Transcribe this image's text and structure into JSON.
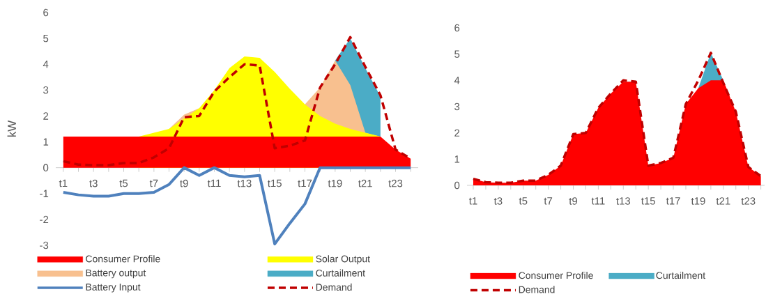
{
  "chart_data": [
    {
      "type": "area",
      "ylabel": "kW",
      "ylim": [
        -3,
        6
      ],
      "yticks": [
        -3,
        -2,
        -1,
        0,
        1,
        2,
        3,
        4,
        5,
        6
      ],
      "legend": "bottom",
      "categories": [
        "t1",
        null,
        "t3",
        null,
        "t5",
        null,
        "t7",
        null,
        "t9",
        null,
        "t11",
        null,
        "t13",
        null,
        "t15",
        null,
        "t17",
        null,
        "t19",
        null,
        "t21",
        null,
        "t23",
        null
      ],
      "series": [
        {
          "name": "Consumer Profile",
          "color": "#ff0000",
          "values": [
            1.2,
            1.2,
            1.2,
            1.2,
            1.2,
            1.2,
            1.2,
            1.2,
            1.2,
            1.2,
            1.2,
            1.2,
            1.2,
            1.2,
            1.2,
            1.2,
            1.2,
            1.2,
            1.2,
            1.2,
            1.2,
            1.2,
            0.7,
            0.35
          ]
        },
        {
          "name": "Solar Output",
          "color": "#ffff00",
          "values": [
            null,
            null,
            null,
            null,
            null,
            1.2,
            1.35,
            1.5,
            1.9,
            2.3,
            3.0,
            3.85,
            4.3,
            4.25,
            3.7,
            3.05,
            2.45,
            2.0,
            1.7,
            1.5,
            1.35,
            1.2,
            null,
            null
          ]
        },
        {
          "name": "Battery output",
          "color": "#f8c08f",
          "values": [
            null,
            null,
            null,
            null,
            null,
            null,
            null,
            1.5,
            2.05,
            2.3,
            null,
            null,
            null,
            null,
            null,
            null,
            2.45,
            3.1,
            4.15,
            3.2,
            1.35,
            1.2,
            null,
            null
          ]
        },
        {
          "name": "Curtailment",
          "color": "#4bacc6",
          "values": [
            null,
            null,
            null,
            null,
            null,
            null,
            null,
            null,
            null,
            null,
            null,
            null,
            null,
            null,
            null,
            null,
            null,
            null,
            4.15,
            5.0,
            3.85,
            2.75,
            null,
            null
          ]
        },
        {
          "name": "Battery Input",
          "type": "line",
          "color": "#4f81bd",
          "values": [
            -0.95,
            -1.05,
            -1.1,
            -1.1,
            -1.0,
            -1.0,
            -0.95,
            -0.65,
            0,
            -0.3,
            0,
            -0.3,
            -0.35,
            -0.3,
            -2.95,
            -2.15,
            -1.4,
            0,
            0,
            0,
            0,
            0,
            0,
            0
          ]
        },
        {
          "name": "Demand",
          "type": "line",
          "line_style": "dashed",
          "color": "#c00000",
          "values": [
            0.25,
            0.12,
            0.1,
            0.1,
            0.18,
            0.18,
            0.4,
            0.75,
            1.95,
            2.0,
            2.95,
            3.5,
            4.0,
            3.95,
            0.75,
            0.85,
            1.05,
            3.1,
            4.0,
            5.05,
            3.9,
            2.8,
            0.7,
            0.35
          ]
        }
      ]
    },
    {
      "type": "area",
      "ylim": [
        0,
        6
      ],
      "yticks": [
        0,
        1,
        2,
        3,
        4,
        5,
        6
      ],
      "legend": "bottom",
      "categories": [
        "t1",
        null,
        "t3",
        null,
        "t5",
        null,
        "t7",
        null,
        "t9",
        null,
        "t11",
        null,
        "t13",
        null,
        "t15",
        null,
        "t17",
        null,
        "t19",
        null,
        "t21",
        null,
        "t23",
        null
      ],
      "series": [
        {
          "name": "Consumer Profile",
          "color": "#ff0000",
          "values": [
            0.25,
            0.12,
            0.1,
            0.1,
            0.18,
            0.18,
            0.4,
            0.75,
            1.95,
            2.0,
            2.95,
            3.5,
            3.95,
            3.95,
            0.75,
            0.85,
            1.05,
            3.1,
            3.7,
            4.0,
            4.0,
            2.8,
            0.7,
            0.35
          ]
        },
        {
          "name": "Curtailment",
          "color": "#4bacc6",
          "values": [
            null,
            null,
            null,
            null,
            null,
            null,
            null,
            null,
            null,
            null,
            null,
            null,
            null,
            null,
            null,
            null,
            null,
            null,
            3.7,
            5.05,
            4.0,
            null,
            null,
            null
          ]
        },
        {
          "name": "Demand",
          "type": "line",
          "line_style": "dashed",
          "color": "#c00000",
          "values": [
            0.25,
            0.12,
            0.1,
            0.1,
            0.18,
            0.18,
            0.4,
            0.75,
            1.95,
            2.0,
            2.95,
            3.5,
            4.0,
            3.95,
            0.75,
            0.85,
            1.05,
            3.1,
            4.0,
            5.05,
            3.9,
            2.8,
            0.7,
            0.35
          ]
        }
      ]
    }
  ]
}
